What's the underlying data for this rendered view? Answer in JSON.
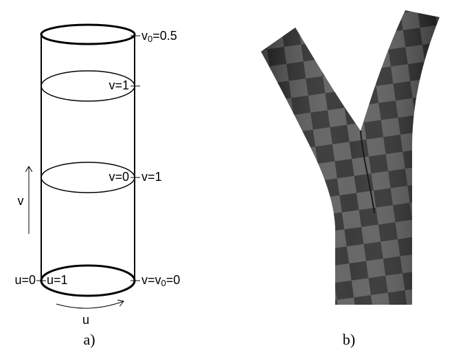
{
  "cylinder": {
    "top_label": {
      "main": "v",
      "sub": "0",
      "rest": "=0.5"
    },
    "ring1_inner": "v=1",
    "ring2_inner": "v=0",
    "ring2_outer": "v=1",
    "bottom_left_outer": "u=0",
    "bottom_left_inner": "u=1",
    "bottom_right": {
      "main": "v=v",
      "sub": "0",
      "rest": "=0"
    },
    "v_arrow": "v",
    "u_arrow": "u"
  },
  "captions": {
    "a": "a)",
    "b": "b)"
  }
}
